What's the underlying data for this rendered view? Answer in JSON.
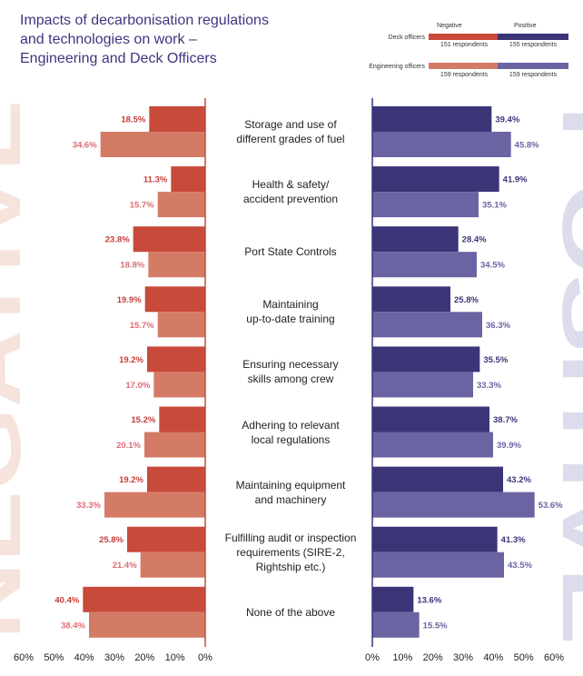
{
  "title": {
    "line1": "Impacts of decarbonisation regulations",
    "line2": "and technologies on work –",
    "line3": "Engineering and Deck Officers"
  },
  "legend": {
    "negative_header": "Negative",
    "positive_header": "Positive",
    "rows": [
      {
        "label": "Deck officers",
        "negative_respondents": "151 respondents",
        "positive_respondents": "155 respondents"
      },
      {
        "label": "Engineering officers",
        "negative_respondents": "159 respondents",
        "positive_respondents": "159 respondents"
      }
    ]
  },
  "colors": {
    "title": "#3d3680",
    "deck_negative": "#c84a3a",
    "eng_negative": "#d47b66",
    "deck_positive": "#3b3578",
    "eng_positive": "#6a64a2",
    "negative_text_deck": "#c2403a",
    "negative_text_eng": "#dc6d74",
    "positive_text_deck": "#3b3578",
    "positive_text_eng": "#6a64a2",
    "negative_watermark": "#f6e3dc",
    "positive_watermark": "#dcdcec",
    "negative_axis": "#c84a3a",
    "positive_axis": "#3b3578"
  },
  "chart_data": {
    "type": "bar",
    "orientation": "horizontal",
    "title": "Impacts of decarbonisation regulations and technologies on work – Engineering and Deck Officers",
    "categories": [
      [
        "Storage and use of",
        "different grades of fuel"
      ],
      [
        "Health & safety/",
        "accident prevention"
      ],
      [
        "Port State Controls"
      ],
      [
        "Maintaining",
        "up-to-date training"
      ],
      [
        "Ensuring necessary",
        "skills among crew"
      ],
      [
        "Adhering to relevant",
        "local regulations"
      ],
      [
        "Maintaining equipment",
        "and machinery"
      ],
      [
        "Fulfilling audit or inspection",
        "requirements (SIRE-2,",
        "Rightship etc.)"
      ],
      [
        "None of the above"
      ]
    ],
    "series": [
      {
        "name": "Deck officers – Negative",
        "side": "negative",
        "values": [
          18.5,
          11.3,
          23.8,
          19.9,
          19.2,
          15.2,
          19.2,
          25.8,
          40.4
        ]
      },
      {
        "name": "Engineering officers – Negative",
        "side": "negative",
        "values": [
          34.6,
          15.7,
          18.8,
          15.7,
          17.0,
          20.1,
          33.3,
          21.4,
          38.4
        ]
      },
      {
        "name": "Deck officers – Positive",
        "side": "positive",
        "values": [
          39.4,
          41.9,
          28.4,
          25.8,
          35.5,
          38.7,
          43.2,
          41.3,
          13.6
        ]
      },
      {
        "name": "Engineering officers – Positive",
        "side": "positive",
        "values": [
          45.8,
          35.1,
          34.5,
          36.3,
          33.3,
          39.9,
          53.6,
          43.5,
          15.5
        ]
      }
    ],
    "negative_axis_ticks": [
      "60%",
      "50%",
      "40%",
      "30%",
      "20%",
      "10%",
      "0%"
    ],
    "positive_axis_ticks": [
      "0%",
      "10%",
      "20%",
      "30%",
      "40%",
      "50%",
      "60%"
    ],
    "xlim": [
      0,
      60
    ],
    "watermark_negative": "NEGATIVE",
    "watermark_positive": "POSITIVE"
  }
}
